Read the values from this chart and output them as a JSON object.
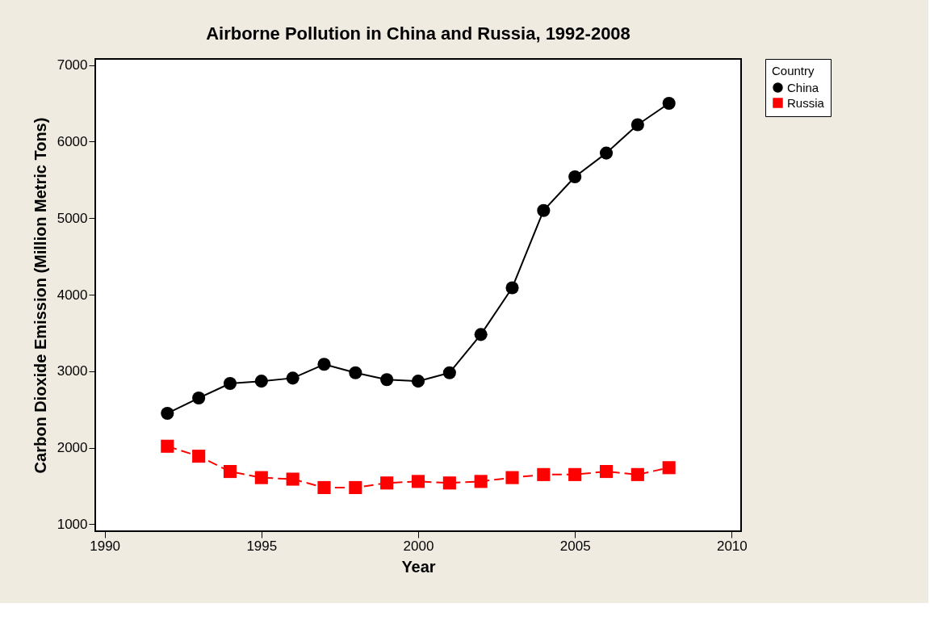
{
  "chart_data": {
    "type": "line",
    "title": "Airborne Pollution in China and Russia, 1992-2008",
    "xlabel": "Year",
    "ylabel": "Carbon Dioxide Emission (Million Metric Tons)",
    "legend_title": "Country",
    "legend": "top right",
    "x": [
      1992,
      1993,
      1994,
      1995,
      1996,
      1997,
      1998,
      1999,
      2000,
      2001,
      2002,
      2003,
      2004,
      2005,
      2006,
      2007,
      2008
    ],
    "series": [
      {
        "name": "China",
        "color": "#000000",
        "marker": "circle",
        "line_style": "solid",
        "values": [
          2450,
          2650,
          2840,
          2870,
          2910,
          3090,
          2980,
          2890,
          2870,
          2980,
          3480,
          4090,
          5100,
          5540,
          5850,
          6220,
          6500
        ]
      },
      {
        "name": "Russia",
        "color": "#ff0000",
        "marker": "square",
        "line_style": "dashed",
        "values": [
          2020,
          1890,
          1690,
          1610,
          1590,
          1480,
          1480,
          1540,
          1560,
          1540,
          1560,
          1610,
          1650,
          1650,
          1690,
          1650,
          1740
        ]
      }
    ],
    "xlim": [
      1989.7,
      2010.3
    ],
    "xticks": [
      1990,
      1995,
      2000,
      2005,
      2010
    ],
    "ylim": [
      910,
      7080
    ],
    "yticks": [
      1000,
      2000,
      3000,
      4000,
      5000,
      6000,
      7000
    ],
    "grid": false
  }
}
